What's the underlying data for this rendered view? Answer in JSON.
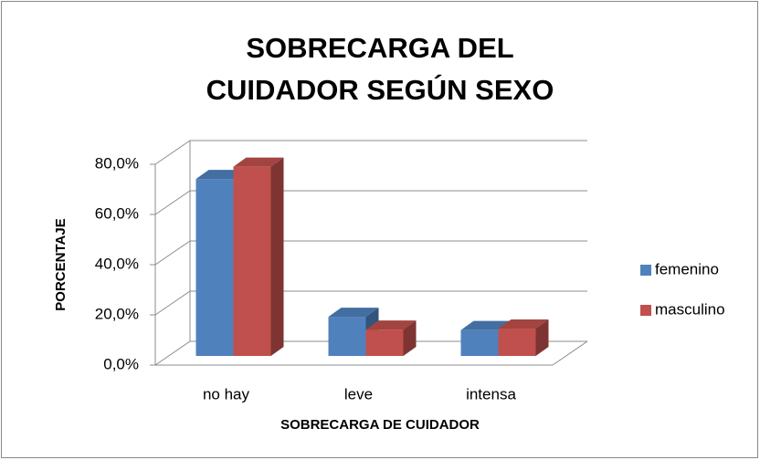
{
  "chart_data": {
    "type": "bar3d",
    "title": "SOBRECARGA DEL CUIDADOR SEGÚN SEXO",
    "x_label": "SOBRECARGA DE CUIDADOR",
    "y_label": "PORCENTAJE",
    "categories": [
      "no hay",
      "leve",
      "intensa"
    ],
    "series": [
      {
        "name": "femenino",
        "color": "#4f81bd",
        "values": [
          70.5,
          15.6,
          10.3
        ]
      },
      {
        "name": "masculino",
        "color": "#c0504d",
        "values": [
          75.4,
          10.5,
          10.9
        ]
      }
    ],
    "ylim": [
      0,
      80
    ],
    "yticks": [
      {
        "value": 0,
        "label": "0,0%"
      },
      {
        "value": 20,
        "label": "20,0%"
      },
      {
        "value": 40,
        "label": "40,0%"
      },
      {
        "value": 60,
        "label": "60,0%"
      },
      {
        "value": 80,
        "label": "80,0%"
      }
    ],
    "grid": true,
    "legend": "right"
  }
}
